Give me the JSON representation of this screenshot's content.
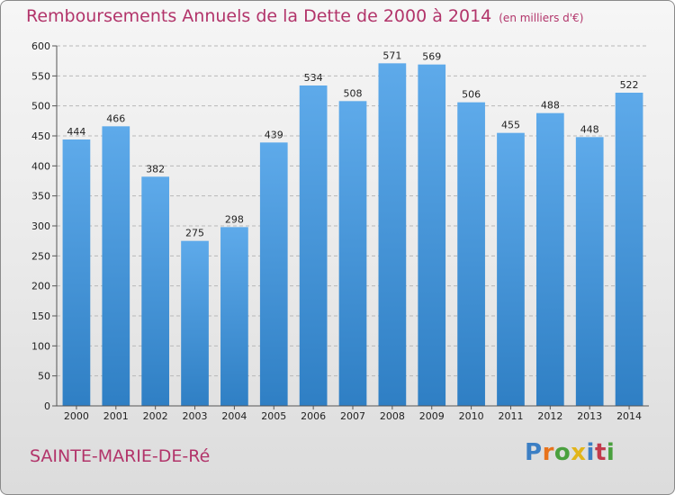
{
  "title": "Remboursements Annuels de la Dette de 2000 à 2014",
  "unit": "(en milliers d'€)",
  "commune": "SAINTE-MARIE-DE-Ré",
  "brand": {
    "letters": [
      "P",
      "r",
      "o",
      "x",
      "i",
      "t",
      "i"
    ],
    "colors": [
      "#3c7fc4",
      "#e8731c",
      "#4aa03e",
      "#e2b51a",
      "#3c7fc4",
      "#c23a4c",
      "#4aa03e"
    ]
  },
  "colors": {
    "bar": "#4f9ee0",
    "title": "#b2346a",
    "grid": "#b8b8b8"
  },
  "chart_data": {
    "type": "bar",
    "title": "Remboursements Annuels de la Dette de 2000 à 2014",
    "xlabel": "",
    "ylabel": "en milliers d'€",
    "categories": [
      "2000",
      "2001",
      "2002",
      "2003",
      "2004",
      "2005",
      "2006",
      "2007",
      "2008",
      "2009",
      "2010",
      "2011",
      "2012",
      "2013",
      "2014"
    ],
    "values": [
      444,
      466,
      382,
      275,
      298,
      439,
      534,
      508,
      571,
      569,
      506,
      455,
      488,
      448,
      522
    ],
    "ylim": [
      0,
      600
    ],
    "yticks": [
      0,
      50,
      100,
      150,
      200,
      250,
      300,
      350,
      400,
      450,
      500,
      550,
      600
    ],
    "grid": true,
    "legend": "none"
  }
}
